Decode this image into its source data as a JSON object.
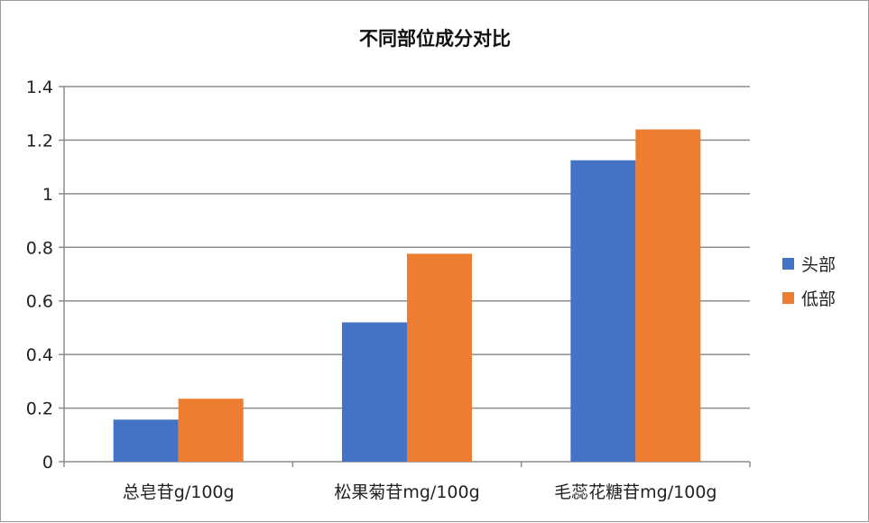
{
  "chart_data": {
    "type": "bar",
    "title": "不同部位成分对比",
    "xlabel": "",
    "ylabel": "",
    "categories": [
      "总皂苷g/100g",
      "松果菊苷mg/100g",
      "毛蕊花糖苷mg/100g"
    ],
    "series": [
      {
        "name": "头部",
        "color": "#4472C4",
        "values": [
          0.157,
          0.52,
          1.125
        ]
      },
      {
        "name": "低部",
        "color": "#ED7D31",
        "values": [
          0.235,
          0.776,
          1.24
        ]
      }
    ],
    "ylim": [
      0,
      1.4
    ],
    "yticks": [
      0,
      0.2,
      0.4,
      0.6,
      0.8,
      1,
      1.2,
      1.4
    ],
    "ytick_labels": [
      "0",
      "0.2",
      "0.4",
      "0.6",
      "0.8",
      "1",
      "1.2",
      "1.4"
    ],
    "grid": true,
    "legend_position": "right"
  }
}
